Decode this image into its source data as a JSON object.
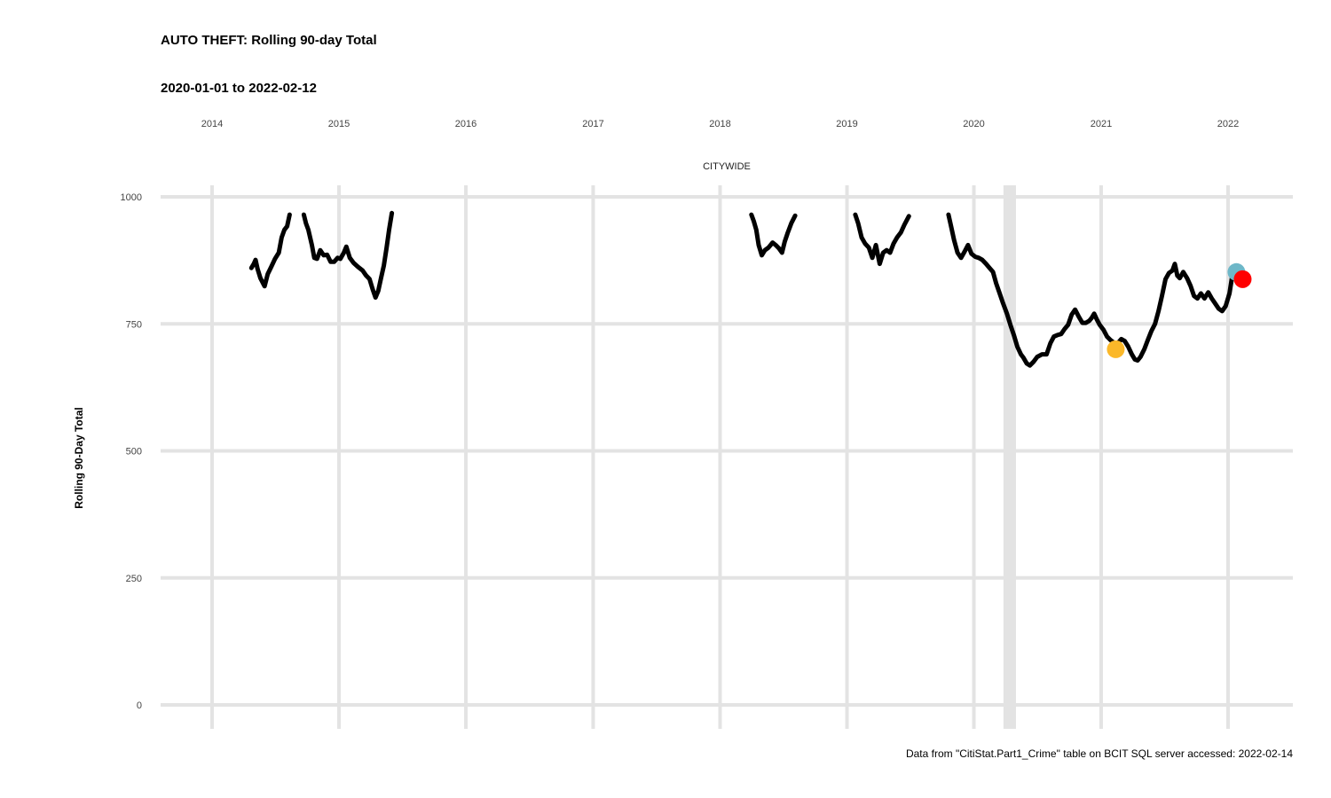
{
  "title": "AUTO THEFT: Rolling 90-day Total",
  "subtitle": "2020-01-01 to 2022-02-12",
  "caption": "Data from \"CitiStat.Part1_Crime\" table on BCIT SQL server accessed: 2022-02-14",
  "chart_data": {
    "type": "line",
    "facet_label": "CITYWIDE",
    "ylabel": "Rolling 90-Day Total",
    "xlabel": "",
    "ylim": [
      0,
      1000
    ],
    "y_ticks": [
      0,
      250,
      500,
      750,
      1000
    ],
    "x_ticks": [
      "2014",
      "2015",
      "2016",
      "2017",
      "2018",
      "2019",
      "2020",
      "2021",
      "2022"
    ],
    "x_axis_position": "top",
    "grid": true,
    "colors": {
      "line": "#000000",
      "grid": "#e3e3e3",
      "highlight_band": "#e3e3e3",
      "point_orange": "#fbb829",
      "point_blue": "#6eb7c8",
      "point_red": "#ff0000"
    },
    "highlight_band": {
      "x_start": "2020-03-26",
      "x_end": "2020-05-01"
    },
    "series": [
      {
        "segments": [
          [
            [
              "2014-04-24",
              860
            ],
            [
              "2014-05-01",
              868
            ],
            [
              "2014-05-06",
              876
            ],
            [
              "2014-05-12",
              858
            ],
            [
              "2014-05-20",
              840
            ],
            [
              "2014-06-01",
              824
            ],
            [
              "2014-06-10",
              848
            ],
            [
              "2014-06-20",
              862
            ],
            [
              "2014-07-01",
              878
            ],
            [
              "2014-07-12",
              890
            ],
            [
              "2014-07-20",
              920
            ],
            [
              "2014-07-28",
              935
            ],
            [
              "2014-08-05",
              942
            ],
            [
              "2014-08-12",
              965
            ]
          ],
          [
            [
              "2014-09-22",
              965
            ],
            [
              "2014-09-28",
              948
            ],
            [
              "2014-10-05",
              935
            ],
            [
              "2014-10-15",
              905
            ],
            [
              "2014-10-22",
              880
            ],
            [
              "2014-10-30",
              878
            ],
            [
              "2014-11-08",
              895
            ],
            [
              "2014-11-18",
              885
            ],
            [
              "2014-11-28",
              886
            ],
            [
              "2014-12-08",
              872
            ],
            [
              "2014-12-18",
              872
            ],
            [
              "2014-12-28",
              880
            ],
            [
              "2015-01-05",
              878
            ],
            [
              "2015-01-15",
              890
            ],
            [
              "2015-01-22",
              902
            ],
            [
              "2015-02-01",
              880
            ],
            [
              "2015-02-12",
              870
            ],
            [
              "2015-02-25",
              862
            ],
            [
              "2015-03-10",
              855
            ],
            [
              "2015-03-20",
              845
            ],
            [
              "2015-03-30",
              838
            ],
            [
              "2015-04-08",
              818
            ],
            [
              "2015-04-16",
              802
            ],
            [
              "2015-04-24",
              815
            ],
            [
              "2015-05-02",
              840
            ],
            [
              "2015-05-10",
              865
            ],
            [
              "2015-05-18",
              900
            ],
            [
              "2015-05-25",
              935
            ],
            [
              "2015-06-02",
              968
            ]
          ],
          [
            [
              "2018-04-01",
              965
            ],
            [
              "2018-04-08",
              952
            ],
            [
              "2018-04-15",
              935
            ],
            [
              "2018-04-22",
              905
            ],
            [
              "2018-05-01",
              885
            ],
            [
              "2018-05-10",
              895
            ],
            [
              "2018-05-20",
              900
            ],
            [
              "2018-06-01",
              910
            ],
            [
              "2018-06-10",
              905
            ],
            [
              "2018-06-20",
              898
            ],
            [
              "2018-06-28",
              890
            ],
            [
              "2018-07-06",
              912
            ],
            [
              "2018-07-15",
              930
            ],
            [
              "2018-07-25",
              948
            ],
            [
              "2018-08-05",
              963
            ]
          ],
          [
            [
              "2019-01-25",
              965
            ],
            [
              "2019-02-02",
              948
            ],
            [
              "2019-02-12",
              920
            ],
            [
              "2019-02-22",
              908
            ],
            [
              "2019-03-05",
              900
            ],
            [
              "2019-03-15",
              880
            ],
            [
              "2019-03-25",
              905
            ],
            [
              "2019-04-05",
              868
            ],
            [
              "2019-04-15",
              890
            ],
            [
              "2019-04-25",
              895
            ],
            [
              "2019-05-05",
              890
            ],
            [
              "2019-05-15",
              908
            ],
            [
              "2019-05-25",
              920
            ],
            [
              "2019-06-05",
              930
            ],
            [
              "2019-06-15",
              945
            ],
            [
              "2019-06-28",
              962
            ]
          ],
          [
            [
              "2019-10-20",
              965
            ],
            [
              "2019-10-28",
              940
            ],
            [
              "2019-11-05",
              915
            ],
            [
              "2019-11-15",
              890
            ],
            [
              "2019-11-25",
              880
            ],
            [
              "2019-12-05",
              892
            ],
            [
              "2019-12-15",
              905
            ],
            [
              "2019-12-25",
              888
            ],
            [
              "2020-01-05",
              882
            ],
            [
              "2020-01-15",
              880
            ],
            [
              "2020-01-25",
              876
            ],
            [
              "2020-02-05",
              868
            ],
            [
              "2020-02-15",
              860
            ],
            [
              "2020-02-25",
              852
            ],
            [
              "2020-03-05",
              830
            ],
            [
              "2020-03-15",
              810
            ],
            [
              "2020-03-25",
              790
            ],
            [
              "2020-04-05",
              770
            ],
            [
              "2020-04-15",
              748
            ],
            [
              "2020-04-25",
              728
            ],
            [
              "2020-05-05",
              705
            ],
            [
              "2020-05-15",
              690
            ],
            [
              "2020-05-22",
              684
            ],
            [
              "2020-06-01",
              672
            ],
            [
              "2020-06-10",
              668
            ],
            [
              "2020-06-20",
              675
            ],
            [
              "2020-07-01",
              685
            ],
            [
              "2020-07-15",
              690
            ],
            [
              "2020-07-28",
              690
            ],
            [
              "2020-08-08",
              712
            ],
            [
              "2020-08-18",
              725
            ],
            [
              "2020-08-28",
              728
            ],
            [
              "2020-09-08",
              730
            ],
            [
              "2020-09-18",
              740
            ],
            [
              "2020-09-28",
              748
            ],
            [
              "2020-10-08",
              768
            ],
            [
              "2020-10-18",
              778
            ],
            [
              "2020-10-28",
              765
            ],
            [
              "2020-11-08",
              752
            ],
            [
              "2020-11-18",
              752
            ],
            [
              "2020-11-28",
              756
            ],
            [
              "2020-12-05",
              762
            ],
            [
              "2020-12-12",
              770
            ],
            [
              "2020-12-20",
              758
            ],
            [
              "2020-12-28",
              748
            ],
            [
              "2021-01-08",
              738
            ],
            [
              "2021-01-18",
              725
            ],
            [
              "2021-01-28",
              718
            ],
            [
              "2021-02-08",
              712
            ],
            [
              "2021-02-18",
              712
            ],
            [
              "2021-02-28",
              720
            ],
            [
              "2021-03-10",
              716
            ],
            [
              "2021-03-20",
              705
            ],
            [
              "2021-03-30",
              690
            ],
            [
              "2021-04-08",
              680
            ],
            [
              "2021-04-16",
              678
            ],
            [
              "2021-04-24",
              685
            ],
            [
              "2021-05-05",
              700
            ],
            [
              "2021-05-15",
              718
            ],
            [
              "2021-05-25",
              735
            ],
            [
              "2021-06-05",
              750
            ],
            [
              "2021-06-15",
              775
            ],
            [
              "2021-06-25",
              805
            ],
            [
              "2021-07-05",
              838
            ],
            [
              "2021-07-15",
              850
            ],
            [
              "2021-07-25",
              855
            ],
            [
              "2021-08-01",
              868
            ],
            [
              "2021-08-08",
              845
            ],
            [
              "2021-08-15",
              840
            ],
            [
              "2021-08-25",
              852
            ],
            [
              "2021-09-05",
              840
            ],
            [
              "2021-09-15",
              825
            ],
            [
              "2021-09-25",
              805
            ],
            [
              "2021-10-05",
              800
            ],
            [
              "2021-10-15",
              810
            ],
            [
              "2021-10-25",
              800
            ],
            [
              "2021-11-05",
              812
            ],
            [
              "2021-11-15",
              800
            ],
            [
              "2021-11-25",
              790
            ],
            [
              "2021-12-05",
              780
            ],
            [
              "2021-12-15",
              775
            ],
            [
              "2021-12-25",
              785
            ],
            [
              "2022-01-05",
              810
            ],
            [
              "2022-01-12",
              840
            ],
            [
              "2022-01-20",
              850
            ]
          ]
        ]
      }
    ],
    "points": [
      {
        "x": "2021-02-12",
        "y": 700,
        "color": "point_orange"
      },
      {
        "x": "2022-01-25",
        "y": 852,
        "color": "point_blue"
      },
      {
        "x": "2022-02-12",
        "y": 838,
        "color": "point_red"
      }
    ]
  }
}
